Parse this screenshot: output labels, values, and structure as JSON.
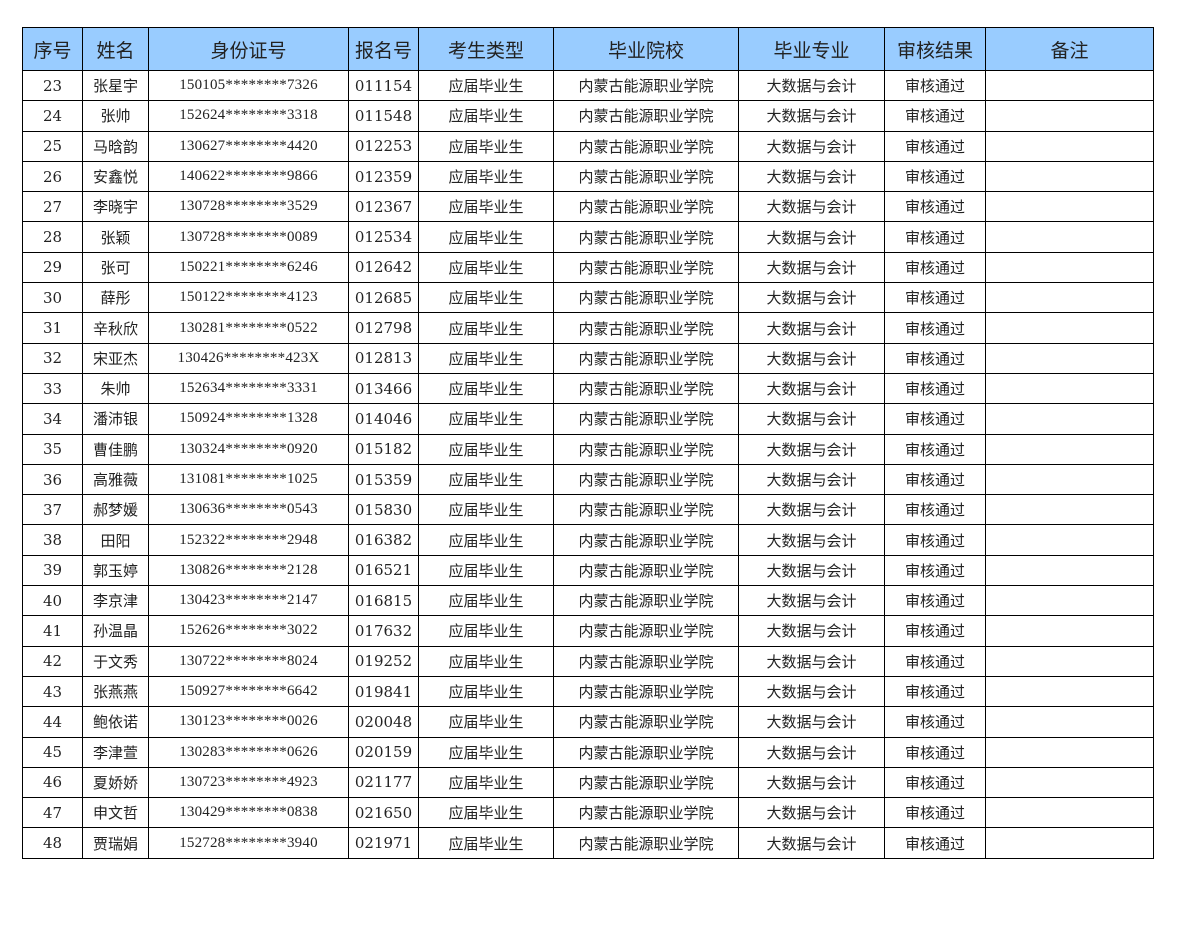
{
  "colors": {
    "header_bg": "#99CCFF",
    "border": "#000000"
  },
  "table": {
    "headers": [
      "序号",
      "姓名",
      "身份证号",
      "报名号",
      "考生类型",
      "毕业院校",
      "毕业专业",
      "审核结果",
      "备注"
    ],
    "rows": [
      [
        "23",
        "张星宇",
        "150105********7326",
        "011154",
        "应届毕业生",
        "内蒙古能源职业学院",
        "大数据与会计",
        "审核通过",
        ""
      ],
      [
        "24",
        "张帅",
        "152624********3318",
        "011548",
        "应届毕业生",
        "内蒙古能源职业学院",
        "大数据与会计",
        "审核通过",
        ""
      ],
      [
        "25",
        "马晗韵",
        "130627********4420",
        "012253",
        "应届毕业生",
        "内蒙古能源职业学院",
        "大数据与会计",
        "审核通过",
        ""
      ],
      [
        "26",
        "安鑫悦",
        "140622********9866",
        "012359",
        "应届毕业生",
        "内蒙古能源职业学院",
        "大数据与会计",
        "审核通过",
        ""
      ],
      [
        "27",
        "李晓宇",
        "130728********3529",
        "012367",
        "应届毕业生",
        "内蒙古能源职业学院",
        "大数据与会计",
        "审核通过",
        ""
      ],
      [
        "28",
        "张颖",
        "130728********0089",
        "012534",
        "应届毕业生",
        "内蒙古能源职业学院",
        "大数据与会计",
        "审核通过",
        ""
      ],
      [
        "29",
        "张可",
        "150221********6246",
        "012642",
        "应届毕业生",
        "内蒙古能源职业学院",
        "大数据与会计",
        "审核通过",
        ""
      ],
      [
        "30",
        "薛彤",
        "150122********4123",
        "012685",
        "应届毕业生",
        "内蒙古能源职业学院",
        "大数据与会计",
        "审核通过",
        ""
      ],
      [
        "31",
        "辛秋欣",
        "130281********0522",
        "012798",
        "应届毕业生",
        "内蒙古能源职业学院",
        "大数据与会计",
        "审核通过",
        ""
      ],
      [
        "32",
        "宋亚杰",
        "130426********423X",
        "012813",
        "应届毕业生",
        "内蒙古能源职业学院",
        "大数据与会计",
        "审核通过",
        ""
      ],
      [
        "33",
        "朱帅",
        "152634********3331",
        "013466",
        "应届毕业生",
        "内蒙古能源职业学院",
        "大数据与会计",
        "审核通过",
        ""
      ],
      [
        "34",
        "潘沛银",
        "150924********1328",
        "014046",
        "应届毕业生",
        "内蒙古能源职业学院",
        "大数据与会计",
        "审核通过",
        ""
      ],
      [
        "35",
        "曹佳鹏",
        "130324********0920",
        "015182",
        "应届毕业生",
        "内蒙古能源职业学院",
        "大数据与会计",
        "审核通过",
        ""
      ],
      [
        "36",
        "高雅薇",
        "131081********1025",
        "015359",
        "应届毕业生",
        "内蒙古能源职业学院",
        "大数据与会计",
        "审核通过",
        ""
      ],
      [
        "37",
        "郝梦媛",
        "130636********0543",
        "015830",
        "应届毕业生",
        "内蒙古能源职业学院",
        "大数据与会计",
        "审核通过",
        ""
      ],
      [
        "38",
        "田阳",
        "152322********2948",
        "016382",
        "应届毕业生",
        "内蒙古能源职业学院",
        "大数据与会计",
        "审核通过",
        ""
      ],
      [
        "39",
        "郭玉婷",
        "130826********2128",
        "016521",
        "应届毕业生",
        "内蒙古能源职业学院",
        "大数据与会计",
        "审核通过",
        ""
      ],
      [
        "40",
        "李京津",
        "130423********2147",
        "016815",
        "应届毕业生",
        "内蒙古能源职业学院",
        "大数据与会计",
        "审核通过",
        ""
      ],
      [
        "41",
        "孙温晶",
        "152626********3022",
        "017632",
        "应届毕业生",
        "内蒙古能源职业学院",
        "大数据与会计",
        "审核通过",
        ""
      ],
      [
        "42",
        "于文秀",
        "130722********8024",
        "019252",
        "应届毕业生",
        "内蒙古能源职业学院",
        "大数据与会计",
        "审核通过",
        ""
      ],
      [
        "43",
        "张燕燕",
        "150927********6642",
        "019841",
        "应届毕业生",
        "内蒙古能源职业学院",
        "大数据与会计",
        "审核通过",
        ""
      ],
      [
        "44",
        "鲍依诺",
        "130123********0026",
        "020048",
        "应届毕业生",
        "内蒙古能源职业学院",
        "大数据与会计",
        "审核通过",
        ""
      ],
      [
        "45",
        "李津萱",
        "130283********0626",
        "020159",
        "应届毕业生",
        "内蒙古能源职业学院",
        "大数据与会计",
        "审核通过",
        ""
      ],
      [
        "46",
        "夏娇娇",
        "130723********4923",
        "021177",
        "应届毕业生",
        "内蒙古能源职业学院",
        "大数据与会计",
        "审核通过",
        ""
      ],
      [
        "47",
        "申文哲",
        "130429********0838",
        "021650",
        "应届毕业生",
        "内蒙古能源职业学院",
        "大数据与会计",
        "审核通过",
        ""
      ],
      [
        "48",
        "贾瑞娟",
        "152728********3940",
        "021971",
        "应届毕业生",
        "内蒙古能源职业学院",
        "大数据与会计",
        "审核通过",
        ""
      ]
    ]
  }
}
